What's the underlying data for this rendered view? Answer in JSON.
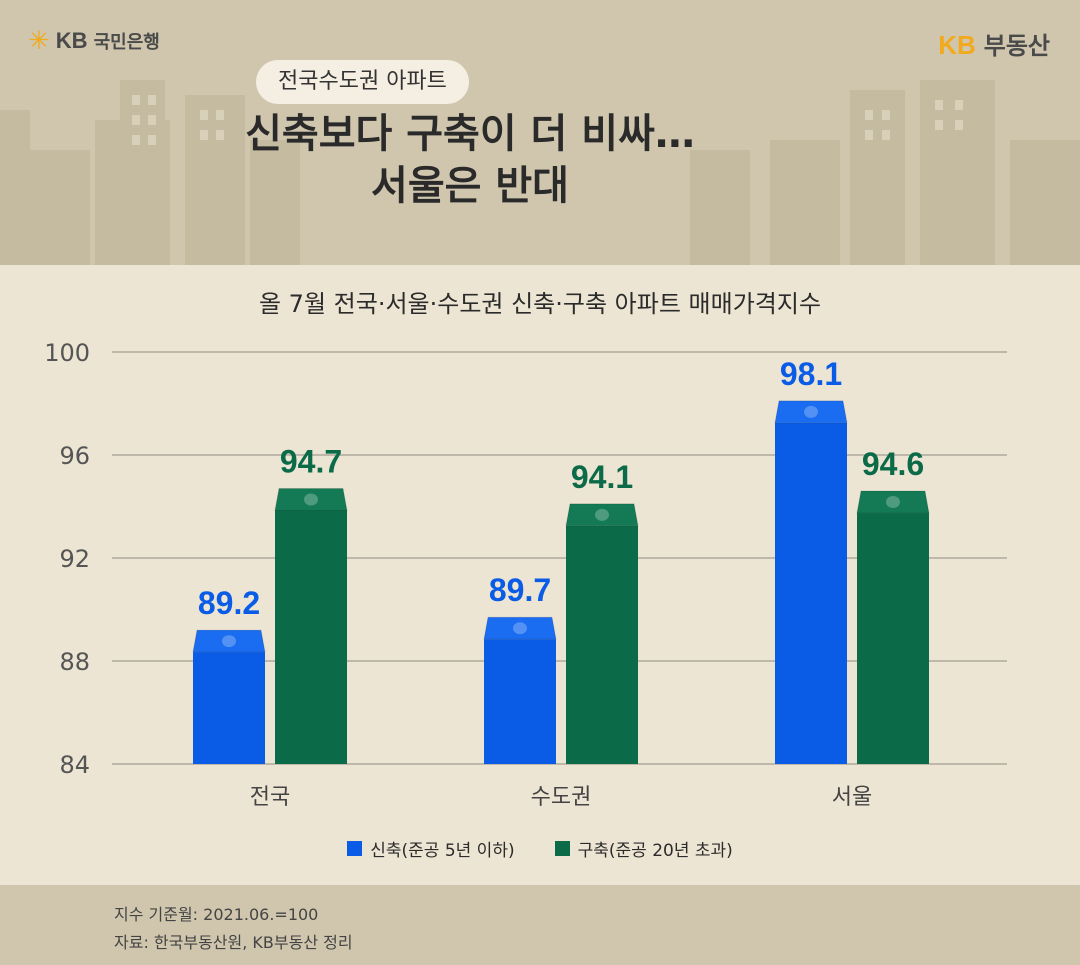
{
  "brand": {
    "left_logo": "KB",
    "left_name": "국민은행",
    "right_logo": "KB",
    "right_name": "부동산",
    "star_icon": "kb-star-icon"
  },
  "header": {
    "pill": "전국수도권 아파트",
    "title_line1": "신축보다 구축이 더 비싸…",
    "title_line2": "서울은 반대"
  },
  "colors": {
    "new": "#0a5ce6",
    "new_top": "#1a6cf0",
    "old": "#0b6b49",
    "old_top": "#137a55",
    "header_bg": "#cfc6ad",
    "body_bg": "#ede5d3"
  },
  "chart_data": {
    "type": "bar",
    "title": "올 7월 전국·서울·수도권 신축·구축 아파트 매매가격지수",
    "categories": [
      "전국",
      "수도권",
      "서울"
    ],
    "series": [
      {
        "name": "신축(준공 5년 이하)",
        "values": [
          89.2,
          89.7,
          98.1
        ]
      },
      {
        "name": "구축(준공 20년 초과)",
        "values": [
          94.7,
          94.1,
          94.6
        ]
      }
    ],
    "value_labels": [
      [
        "89.2",
        "89.7",
        "98.1"
      ],
      [
        "94.7",
        "94.1",
        "94.6"
      ]
    ],
    "ylim": [
      84,
      100
    ],
    "yticks": [
      "84",
      "88",
      "92",
      "96",
      "100"
    ],
    "grid": true,
    "legend_position": "bottom"
  },
  "footer": {
    "note1": "지수 기준월: 2021.06.=100",
    "note2": "자료: 한국부동산원, KB부동산 정리"
  }
}
